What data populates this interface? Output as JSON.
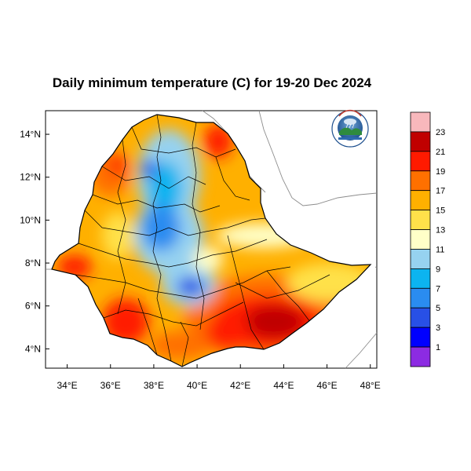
{
  "title": "Daily minimum temperature (C) for 19-20 Dec 2024",
  "axes": {
    "x_ticks": [
      "34°E",
      "36°E",
      "38°E",
      "40°E",
      "42°E",
      "44°E",
      "46°E",
      "48°E"
    ],
    "y_ticks": [
      "4°N",
      "6°N",
      "8°N",
      "10°N",
      "12°N",
      "14°N"
    ],
    "xlim_deg": [
      33,
      48.3
    ],
    "ylim_deg": [
      3.1,
      15.1
    ]
  },
  "colorbar": {
    "labels": [
      "23",
      "21",
      "19",
      "17",
      "15",
      "13",
      "11",
      "9",
      "7",
      "5",
      "3",
      "1"
    ],
    "colors": [
      "#f8b8bc",
      "#c00000",
      "#ff1a00",
      "#ff7000",
      "#ffb000",
      "#ffe14a",
      "#ffffc8",
      "#96d2f0",
      "#0cb4f0",
      "#2a8cf0",
      "#2850e6",
      "#0000ff",
      "#8c2be2"
    ]
  },
  "logo": {
    "icon": "ethiopian-meteorology-institute-logo"
  },
  "map": {
    "region": "Ethiopia",
    "background": "#ffffff"
  }
}
